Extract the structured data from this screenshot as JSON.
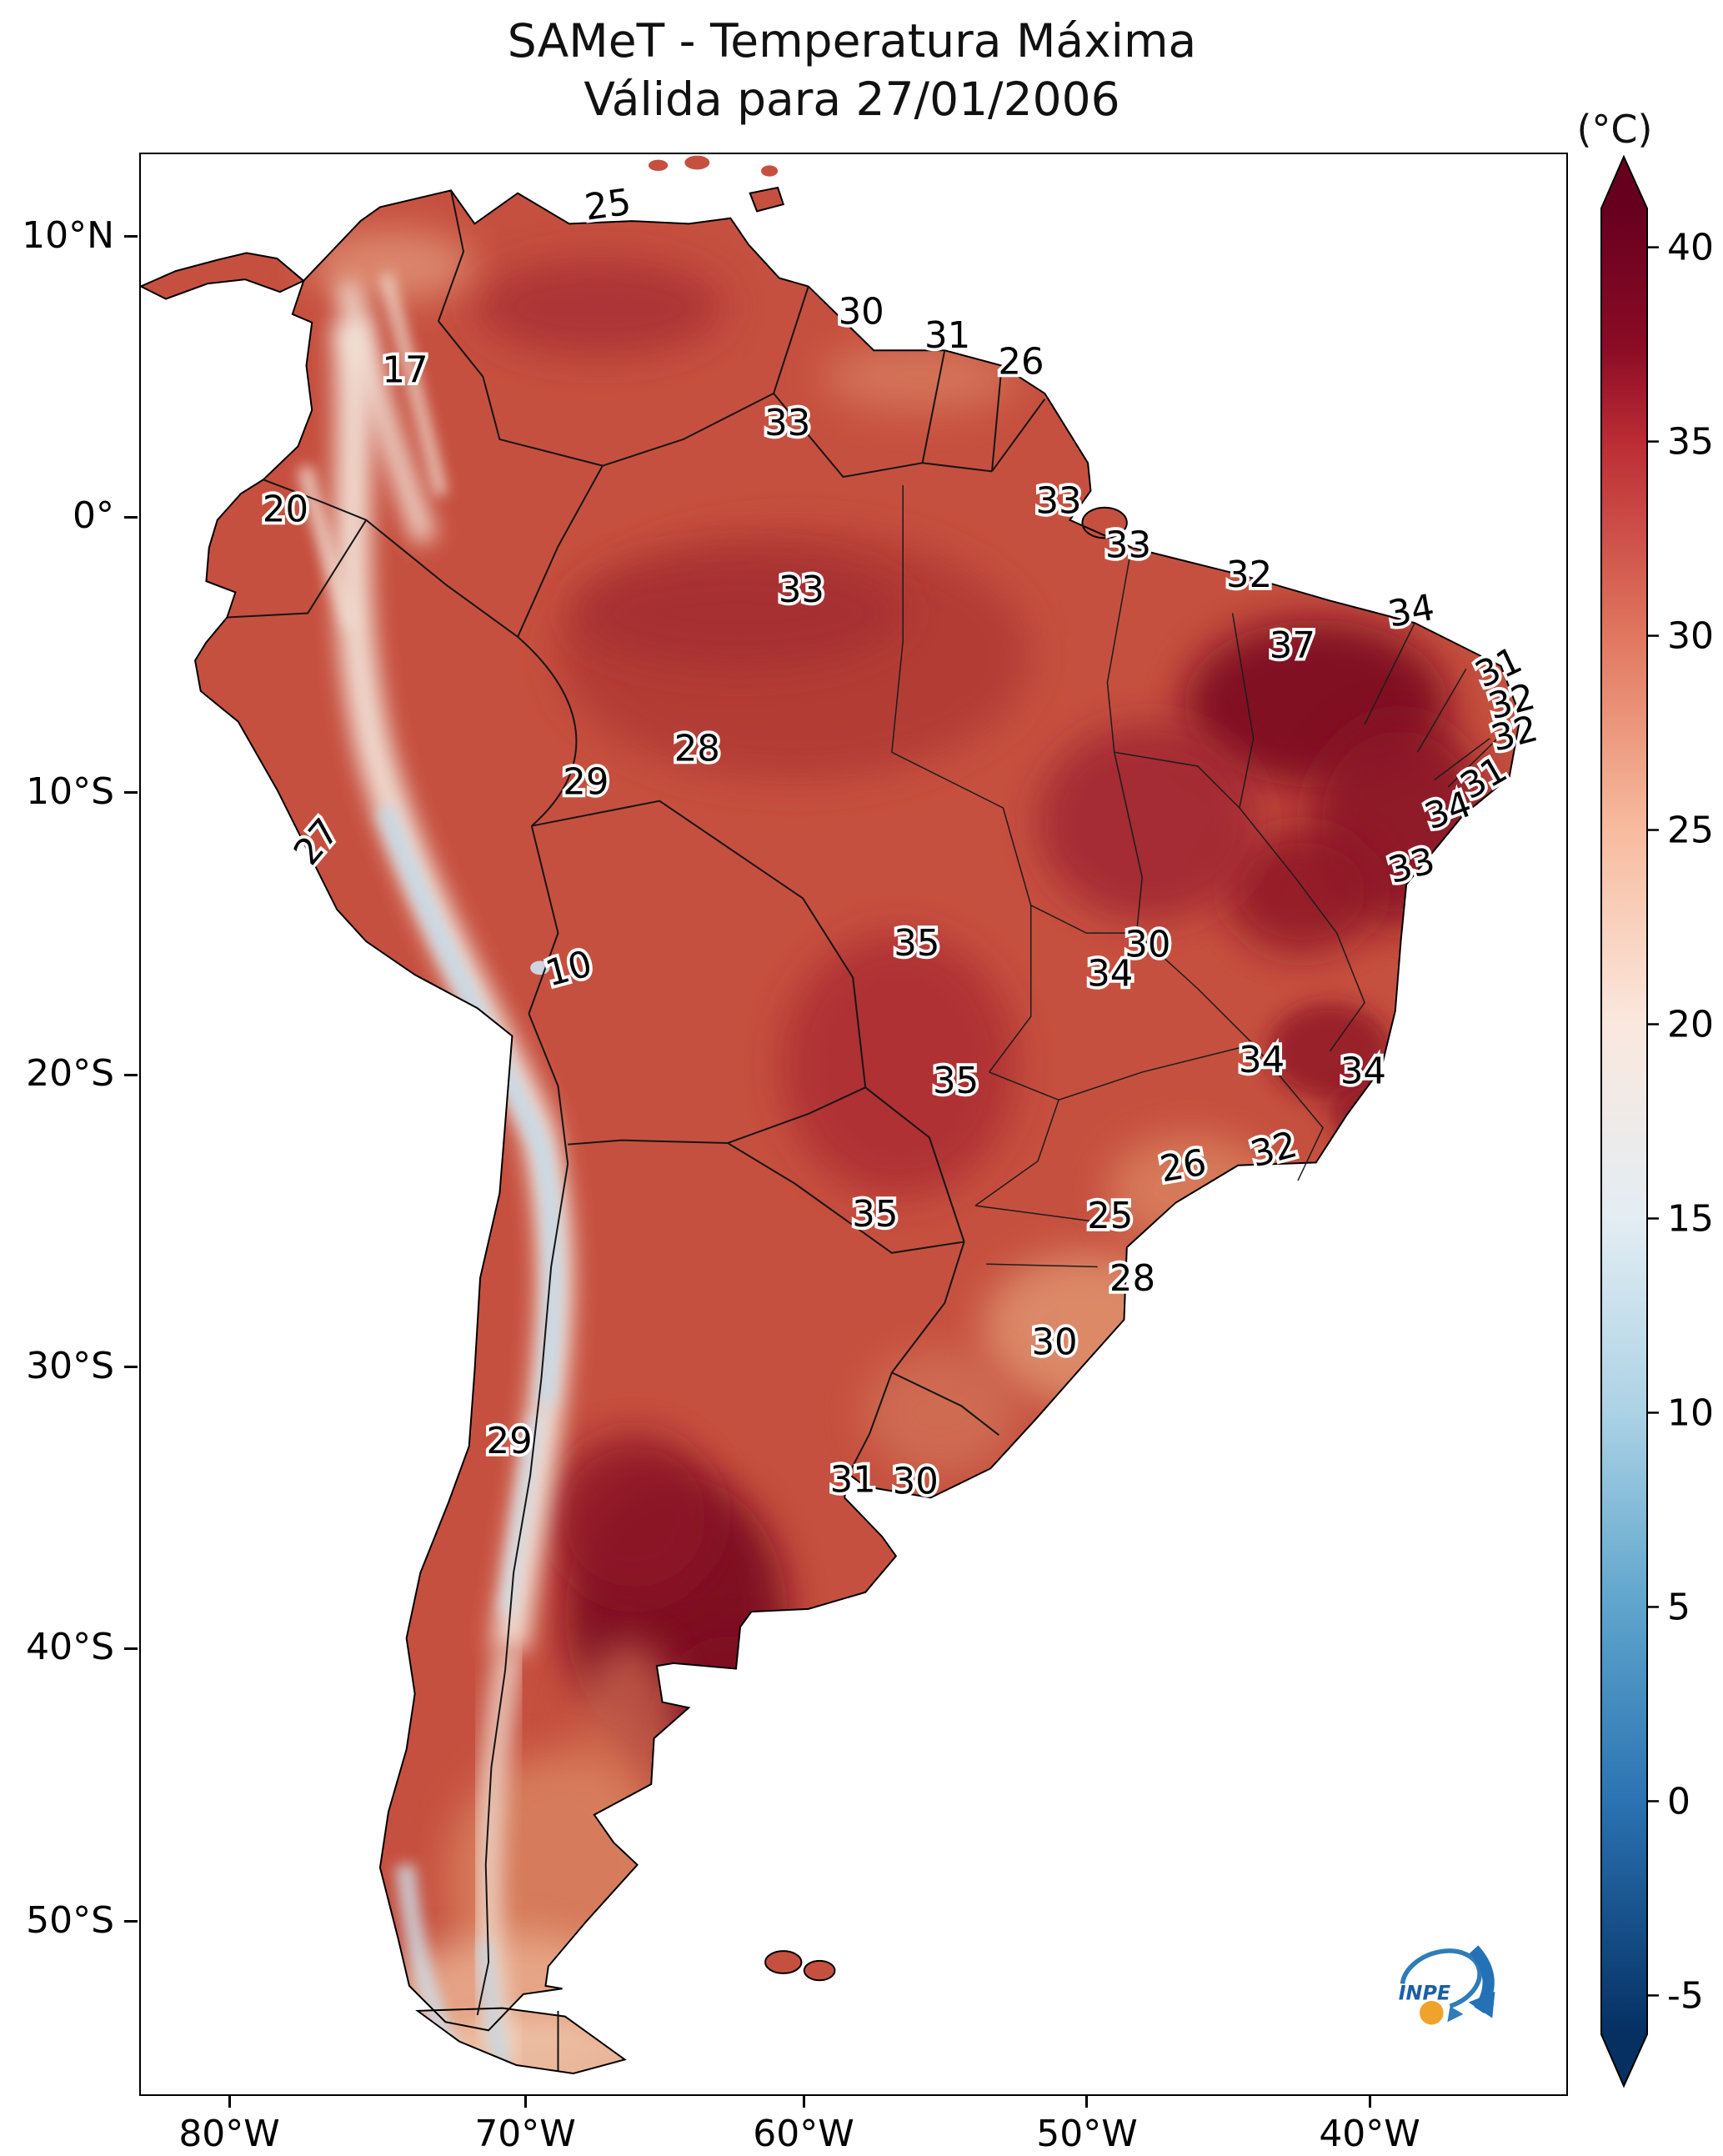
{
  "title": {
    "line1": "SAMeT - Temperatura Máxima",
    "line2": "Válida para 27/01/2006"
  },
  "colorbar": {
    "unit": "(°C)",
    "ticks": [
      40,
      35,
      30,
      25,
      20,
      15,
      10,
      5,
      0,
      -5
    ],
    "vmax": 41,
    "vmin": -6,
    "colormap": "RdBu_r",
    "gradient_anchors": [
      "#67001f",
      "#b2182b",
      "#d6604d",
      "#f4a582",
      "#fddbc7",
      "#f7f7f7",
      "#d1e5f0",
      "#92c5de",
      "#4393c3",
      "#2166ac",
      "#053061"
    ]
  },
  "axes": {
    "x_ticks": [
      {
        "label": "80°W",
        "fx": 0.0632
      },
      {
        "label": "70°W",
        "fx": 0.2708
      },
      {
        "label": "60°W",
        "fx": 0.4661
      },
      {
        "label": "50°W",
        "fx": 0.6649
      },
      {
        "label": "40°W",
        "fx": 0.8632
      }
    ],
    "y_ticks": [
      {
        "label": "10°N",
        "fy": 0.0434
      },
      {
        "label": "0°",
        "fy": 0.1878
      },
      {
        "label": "10°S",
        "fy": 0.33
      },
      {
        "label": "20°S",
        "fy": 0.4753
      },
      {
        "label": "30°S",
        "fy": 0.6261
      },
      {
        "label": "40°S",
        "fy": 0.771
      },
      {
        "label": "50°S",
        "fy": 0.9119
      }
    ]
  },
  "chart_data": {
    "type": "heatmap",
    "title": "SAMeT - Temperatura Máxima",
    "subtitle": "Válida para 27/01/2006",
    "units": "°C",
    "region": "South America",
    "colormap": "RdBu_r",
    "value_range": [
      -6,
      41
    ],
    "labels": [
      {
        "v": "25",
        "x": 337,
        "y": 45,
        "r": -8
      },
      {
        "v": "17",
        "x": 190,
        "y": 164,
        "r": 0
      },
      {
        "v": "30",
        "x": 518,
        "y": 122,
        "r": 0
      },
      {
        "v": "31",
        "x": 580,
        "y": 139,
        "r": 0
      },
      {
        "v": "26",
        "x": 633,
        "y": 158,
        "r": 0
      },
      {
        "v": "33",
        "x": 465,
        "y": 202,
        "r": 0
      },
      {
        "v": "20",
        "x": 104,
        "y": 264,
        "r": 0
      },
      {
        "v": "33",
        "x": 660,
        "y": 258,
        "r": 0
      },
      {
        "v": "33",
        "x": 710,
        "y": 290,
        "r": 0
      },
      {
        "v": "32",
        "x": 797,
        "y": 311,
        "r": 0
      },
      {
        "v": "33",
        "x": 475,
        "y": 322,
        "r": 0
      },
      {
        "v": "34",
        "x": 915,
        "y": 337,
        "r": -10
      },
      {
        "v": "37",
        "x": 828,
        "y": 362,
        "r": 0
      },
      {
        "v": "31",
        "x": 980,
        "y": 377,
        "r": -25
      },
      {
        "v": "32",
        "x": 988,
        "y": 402,
        "r": -15
      },
      {
        "v": "32",
        "x": 990,
        "y": 425,
        "r": -15
      },
      {
        "v": "28",
        "x": 400,
        "y": 436,
        "r": 0
      },
      {
        "v": "31",
        "x": 970,
        "y": 456,
        "r": -30
      },
      {
        "v": "29",
        "x": 320,
        "y": 460,
        "r": 0
      },
      {
        "v": "34",
        "x": 943,
        "y": 480,
        "r": -20
      },
      {
        "v": "27",
        "x": 133,
        "y": 500,
        "r": -50
      },
      {
        "v": "33",
        "x": 916,
        "y": 520,
        "r": -15
      },
      {
        "v": "10",
        "x": 310,
        "y": 594,
        "r": -15
      },
      {
        "v": "35",
        "x": 558,
        "y": 576,
        "r": 0
      },
      {
        "v": "30",
        "x": 724,
        "y": 577,
        "r": 0
      },
      {
        "v": "34",
        "x": 697,
        "y": 598,
        "r": 0
      },
      {
        "v": "34",
        "x": 806,
        "y": 660,
        "r": 0
      },
      {
        "v": "34",
        "x": 879,
        "y": 668,
        "r": 0
      },
      {
        "v": "35",
        "x": 586,
        "y": 675,
        "r": 0
      },
      {
        "v": "32",
        "x": 817,
        "y": 724,
        "r": -15
      },
      {
        "v": "26",
        "x": 751,
        "y": 736,
        "r": -10
      },
      {
        "v": "35",
        "x": 528,
        "y": 771,
        "r": 0
      },
      {
        "v": "25",
        "x": 697,
        "y": 772,
        "r": 0
      },
      {
        "v": "28",
        "x": 713,
        "y": 817,
        "r": 0
      },
      {
        "v": "30",
        "x": 657,
        "y": 863,
        "r": 0
      },
      {
        "v": "29",
        "x": 265,
        "y": 934,
        "r": 0
      },
      {
        "v": "31",
        "x": 512,
        "y": 962,
        "r": 0
      },
      {
        "v": "30",
        "x": 557,
        "y": 963,
        "r": 0
      }
    ]
  },
  "logo": {
    "text": "INPE"
  }
}
